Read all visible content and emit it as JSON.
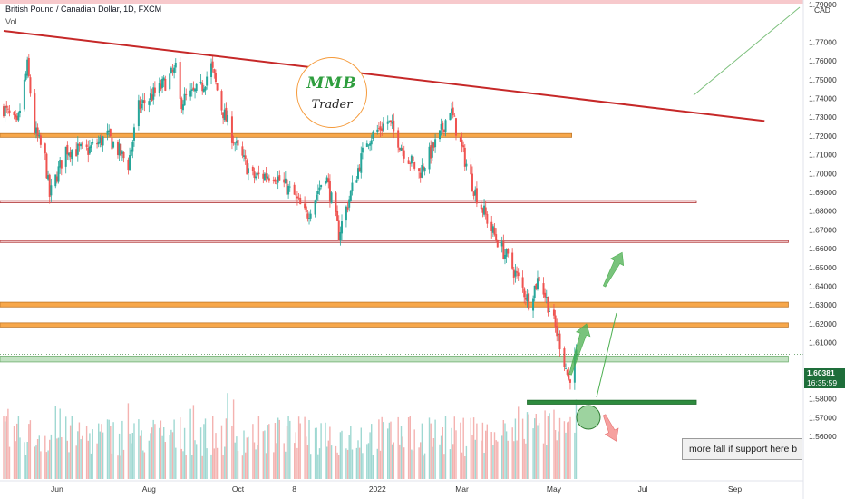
{
  "header": {
    "symbol": "British Pound / Canadian Dollar, 1D, FXCM",
    "vol_label": "Vol"
  },
  "logo": {
    "text_top": "MMB",
    "text_bottom": "Trader"
  },
  "price_axis": {
    "currency": "CAD"
  },
  "annotation": {
    "text": "more fall if support here b"
  },
  "last_price": {
    "value": "1.60381",
    "countdown": "16:35:59"
  },
  "colors": {
    "up": "#26a69a",
    "down": "#ef5350",
    "trendline": "#c62828",
    "resistance": "#f7a74a",
    "support": "#7cc07c"
  },
  "chart_data": {
    "type": "candlestick",
    "y_ticks": [
      "1.79000",
      "1.77000",
      "1.76000",
      "1.75000",
      "1.74000",
      "1.73000",
      "1.72000",
      "1.71000",
      "1.70000",
      "1.69000",
      "1.68000",
      "1.67000",
      "1.66000",
      "1.65000",
      "1.64000",
      "1.63000",
      "1.62000",
      "1.61000",
      "1.60000",
      "1.59000",
      "1.58000",
      "1.57000",
      "1.56000"
    ],
    "x_ticks": [
      "Jun",
      "Aug",
      "Oct",
      "8",
      "2022",
      "Mar",
      "May",
      "Jul",
      "Sep"
    ],
    "ylim": [
      1.555,
      1.79
    ],
    "last_price": 1.60381,
    "series_close_path": [
      {
        "x": "2021-04-26",
        "y": 1.735
      },
      {
        "x": "2021-05-05",
        "y": 1.725
      },
      {
        "x": "2021-05-12",
        "y": 1.757
      },
      {
        "x": "2021-05-17",
        "y": 1.723
      },
      {
        "x": "2021-05-24",
        "y": 1.708
      },
      {
        "x": "2021-05-27",
        "y": 1.688
      },
      {
        "x": "2021-06-07",
        "y": 1.713
      },
      {
        "x": "2021-06-21",
        "y": 1.712
      },
      {
        "x": "2021-07-05",
        "y": 1.72
      },
      {
        "x": "2021-07-19",
        "y": 1.705
      },
      {
        "x": "2021-07-26",
        "y": 1.735
      },
      {
        "x": "2021-08-09",
        "y": 1.745
      },
      {
        "x": "2021-08-20",
        "y": 1.755
      },
      {
        "x": "2021-08-23",
        "y": 1.738
      },
      {
        "x": "2021-09-06",
        "y": 1.745
      },
      {
        "x": "2021-09-13",
        "y": 1.757
      },
      {
        "x": "2021-09-20",
        "y": 1.735
      },
      {
        "x": "2021-10-01",
        "y": 1.712
      },
      {
        "x": "2021-10-11",
        "y": 1.698
      },
      {
        "x": "2021-10-25",
        "y": 1.7
      },
      {
        "x": "2021-11-08",
        "y": 1.688
      },
      {
        "x": "2021-11-16",
        "y": 1.677
      },
      {
        "x": "2021-11-29",
        "y": 1.7
      },
      {
        "x": "2021-12-08",
        "y": 1.668
      },
      {
        "x": "2021-12-20",
        "y": 1.7
      },
      {
        "x": "2021-12-27",
        "y": 1.718
      },
      {
        "x": "2022-01-10",
        "y": 1.728
      },
      {
        "x": "2022-01-21",
        "y": 1.712
      },
      {
        "x": "2022-01-31",
        "y": 1.7
      },
      {
        "x": "2022-02-14",
        "y": 1.72
      },
      {
        "x": "2022-02-21",
        "y": 1.735
      },
      {
        "x": "2022-03-02",
        "y": 1.71
      },
      {
        "x": "2022-03-10",
        "y": 1.69
      },
      {
        "x": "2022-03-21",
        "y": 1.67
      },
      {
        "x": "2022-04-04",
        "y": 1.65
      },
      {
        "x": "2022-04-15",
        "y": 1.632
      },
      {
        "x": "2022-04-22",
        "y": 1.645
      },
      {
        "x": "2022-04-29",
        "y": 1.628
      },
      {
        "x": "2022-05-06",
        "y": 1.61
      },
      {
        "x": "2022-05-12",
        "y": 1.59
      },
      {
        "x": "2022-05-17",
        "y": 1.603
      }
    ],
    "annotations": [
      {
        "type": "trendline",
        "from": {
          "x": "2021-04-26",
          "y": 1.776
        },
        "to": {
          "x": "2022-09-21",
          "y": 1.728
        }
      },
      {
        "type": "zone",
        "color": "resistance",
        "y": [
          1.7193,
          1.7213
        ],
        "x_end": "2022-05-14"
      },
      {
        "type": "zone",
        "color": "line",
        "y": [
          1.6844,
          1.6856
        ],
        "x_end": "2022-08-06"
      },
      {
        "type": "zone",
        "color": "line",
        "y": [
          1.6633,
          1.6643
        ],
        "x_end": "2022-10-07"
      },
      {
        "type": "zone",
        "color": "resistance",
        "y": [
          1.629,
          1.6315
        ],
        "x_end": "2022-10-07"
      },
      {
        "type": "zone",
        "color": "resistance",
        "y": [
          1.6183,
          1.6205
        ],
        "x_end": "2022-10-07"
      },
      {
        "type": "zone",
        "color": "support",
        "y": [
          1.5997,
          1.6028
        ],
        "x_end": "2022-10-07"
      },
      {
        "type": "zone",
        "color": "support",
        "y": [
          1.5772,
          1.5793
        ],
        "x_start": "2022-04-14",
        "x_end": "2022-08-06"
      },
      {
        "type": "arrow",
        "direction": "up",
        "from": {
          "x": "2022-05-13",
          "y": 1.593
        },
        "to": {
          "x": "2022-05-24",
          "y": 1.62
        }
      },
      {
        "type": "arrow",
        "direction": "up",
        "from": {
          "x": "2022-06-05",
          "y": 1.64
        },
        "to": {
          "x": "2022-06-17",
          "y": 1.658
        }
      },
      {
        "type": "arrow",
        "direction": "down",
        "from": {
          "x": "2022-06-05",
          "y": 1.5715
        },
        "to": {
          "x": "2022-06-13",
          "y": 1.5575
        }
      }
    ]
  }
}
